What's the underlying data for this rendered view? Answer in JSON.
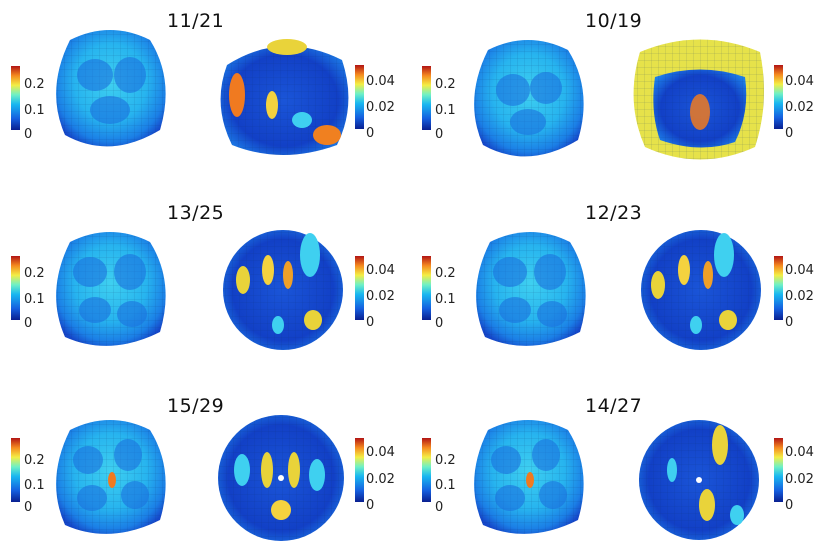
{
  "panels": [
    {
      "title": "11/21",
      "left_ticks": [
        "0.2",
        "0.1",
        "0"
      ],
      "right_ticks": [
        "0.04",
        "0.02",
        "0"
      ]
    },
    {
      "title": "10/19",
      "left_ticks": [
        "0.2",
        "0.1",
        "0"
      ],
      "right_ticks": [
        "0.04",
        "0.02",
        "0"
      ]
    },
    {
      "title": "13/25",
      "left_ticks": [
        "0.2",
        "0.1",
        "0"
      ],
      "right_ticks": [
        "0.04",
        "0.02",
        "0"
      ]
    },
    {
      "title": "12/23",
      "left_ticks": [
        "0.2",
        "0.1",
        "0"
      ],
      "right_ticks": [
        "0.04",
        "0.02",
        "0"
      ]
    },
    {
      "title": "15/29",
      "left_ticks": [
        "0.2",
        "0.1",
        "0"
      ],
      "right_ticks": [
        "0.04",
        "0.02",
        "0"
      ]
    },
    {
      "title": "14/27",
      "left_ticks": [
        "0.2",
        "0.1",
        "0"
      ],
      "right_ticks": [
        "0.04",
        "0.02",
        "0"
      ]
    }
  ],
  "colors": {
    "colormap_low": "#0a1f8f",
    "colormap_mid": "#19b7f0",
    "colormap_high": "#b21414"
  }
}
